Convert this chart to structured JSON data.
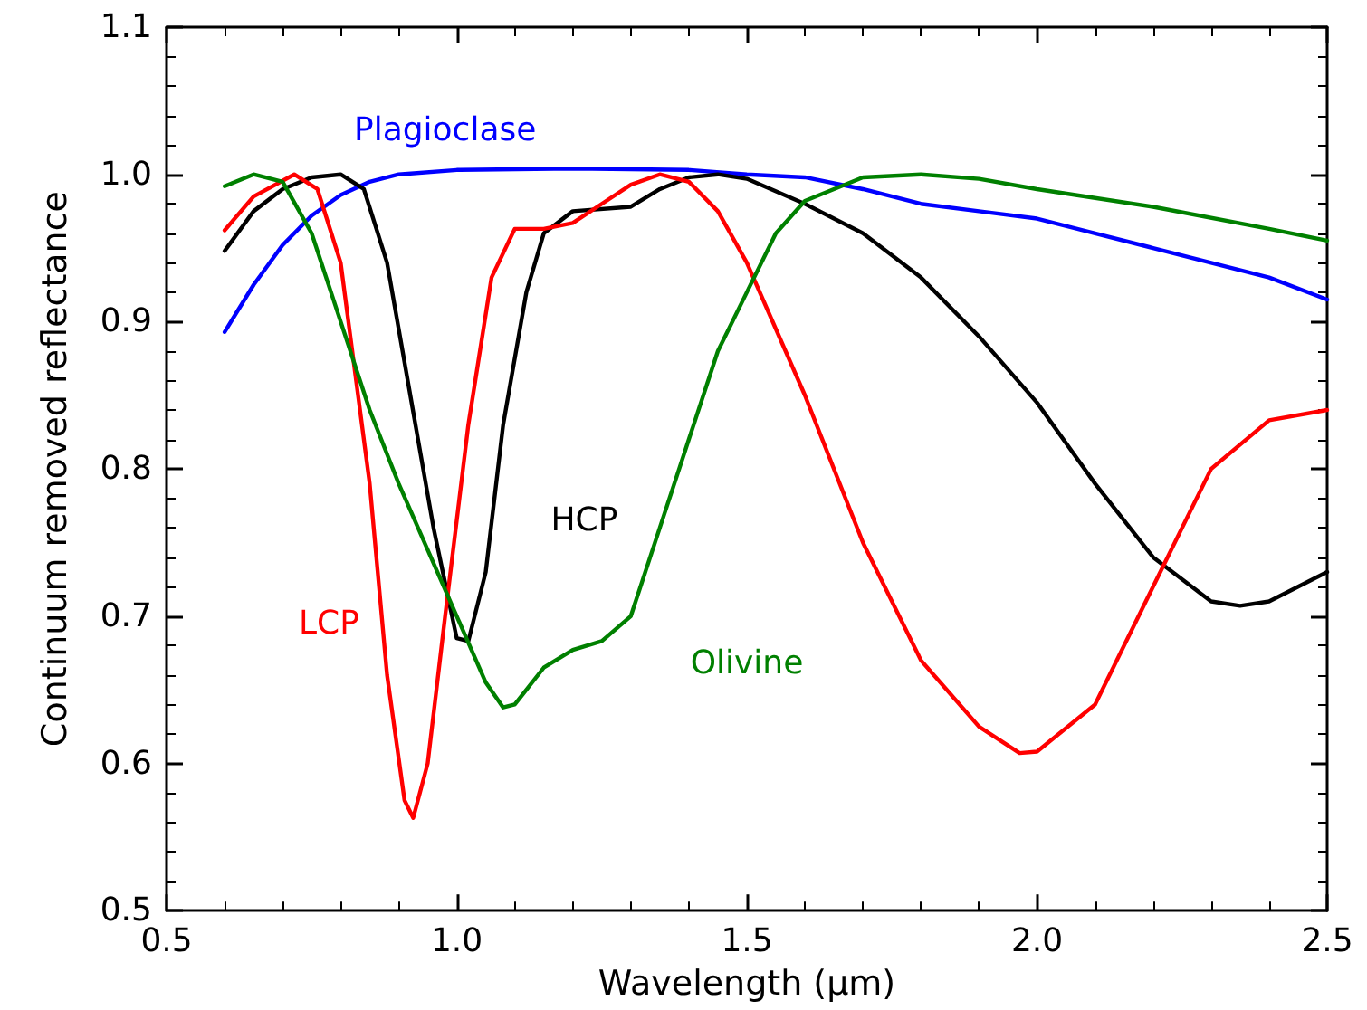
{
  "chart_data": {
    "type": "line",
    "xlabel": "Wavelength (μm)",
    "ylabel": "Continuum removed reflectance",
    "xlim": [
      0.5,
      2.5
    ],
    "ylim": [
      0.5,
      1.1
    ],
    "xticks": [
      {
        "value": 0.5,
        "label": "0.5"
      },
      {
        "value": 1.0,
        "label": "1.0"
      },
      {
        "value": 1.5,
        "label": "1.5"
      },
      {
        "value": 2.0,
        "label": "2.0"
      },
      {
        "value": 2.5,
        "label": "2.5"
      }
    ],
    "yticks": [
      {
        "value": 0.5,
        "label": "0.5"
      },
      {
        "value": 0.6,
        "label": "0.6"
      },
      {
        "value": 0.7,
        "label": "0.7"
      },
      {
        "value": 0.8,
        "label": "0.8"
      },
      {
        "value": 0.9,
        "label": "0.9"
      },
      {
        "value": 1.0,
        "label": "1.0"
      },
      {
        "value": 1.1,
        "label": "1.1"
      }
    ],
    "grid": false,
    "legend": false,
    "marker": "none",
    "line_style": "solid",
    "series": [
      {
        "name": "Plagioclase",
        "color": "#0000ff",
        "x": [
          0.6,
          0.65,
          0.7,
          0.75,
          0.8,
          0.85,
          0.9,
          1.0,
          1.2,
          1.4,
          1.5,
          1.6,
          1.7,
          1.8,
          1.9,
          2.0,
          2.1,
          2.2,
          2.3,
          2.4,
          2.5
        ],
        "values": [
          0.893,
          0.925,
          0.952,
          0.972,
          0.986,
          0.995,
          1.0,
          1.003,
          1.004,
          1.003,
          1.0,
          0.998,
          0.99,
          0.98,
          0.975,
          0.97,
          0.96,
          0.95,
          0.94,
          0.93,
          0.915
        ]
      },
      {
        "name": "HCP",
        "color": "#000000",
        "x": [
          0.6,
          0.65,
          0.7,
          0.75,
          0.8,
          0.84,
          0.88,
          0.92,
          0.96,
          1.0,
          1.02,
          1.05,
          1.08,
          1.12,
          1.15,
          1.2,
          1.3,
          1.35,
          1.4,
          1.45,
          1.5,
          1.6,
          1.7,
          1.8,
          1.9,
          2.0,
          2.1,
          2.2,
          2.3,
          2.35,
          2.4,
          2.5
        ],
        "values": [
          0.948,
          0.975,
          0.99,
          0.998,
          1.0,
          0.99,
          0.94,
          0.85,
          0.76,
          0.685,
          0.683,
          0.73,
          0.83,
          0.92,
          0.96,
          0.975,
          0.978,
          0.99,
          0.998,
          1.0,
          0.997,
          0.98,
          0.96,
          0.93,
          0.89,
          0.845,
          0.79,
          0.74,
          0.71,
          0.707,
          0.71,
          0.73
        ]
      },
      {
        "name": "LCP",
        "color": "#ff0000",
        "x": [
          0.6,
          0.65,
          0.72,
          0.76,
          0.8,
          0.85,
          0.88,
          0.91,
          0.925,
          0.95,
          0.98,
          1.02,
          1.06,
          1.1,
          1.15,
          1.2,
          1.25,
          1.3,
          1.35,
          1.4,
          1.45,
          1.5,
          1.6,
          1.7,
          1.8,
          1.9,
          1.97,
          2.0,
          2.1,
          2.2,
          2.3,
          2.4,
          2.5
        ],
        "values": [
          0.962,
          0.985,
          1.0,
          0.99,
          0.94,
          0.79,
          0.66,
          0.575,
          0.563,
          0.6,
          0.7,
          0.83,
          0.93,
          0.963,
          0.963,
          0.967,
          0.98,
          0.993,
          1.0,
          0.995,
          0.975,
          0.94,
          0.85,
          0.75,
          0.67,
          0.625,
          0.607,
          0.608,
          0.64,
          0.72,
          0.8,
          0.833,
          0.84
        ]
      },
      {
        "name": "Olivine",
        "color": "#008000",
        "x": [
          0.6,
          0.65,
          0.7,
          0.75,
          0.8,
          0.85,
          0.9,
          0.95,
          1.0,
          1.05,
          1.08,
          1.1,
          1.15,
          1.2,
          1.25,
          1.3,
          1.35,
          1.4,
          1.45,
          1.5,
          1.55,
          1.6,
          1.7,
          1.8,
          1.9,
          2.0,
          2.2,
          2.4,
          2.5
        ],
        "values": [
          0.992,
          1.0,
          0.995,
          0.96,
          0.9,
          0.84,
          0.79,
          0.745,
          0.7,
          0.655,
          0.638,
          0.64,
          0.665,
          0.677,
          0.683,
          0.7,
          0.76,
          0.82,
          0.88,
          0.92,
          0.96,
          0.982,
          0.998,
          1.0,
          0.997,
          0.99,
          0.978,
          0.963,
          0.955
        ]
      }
    ]
  }
}
